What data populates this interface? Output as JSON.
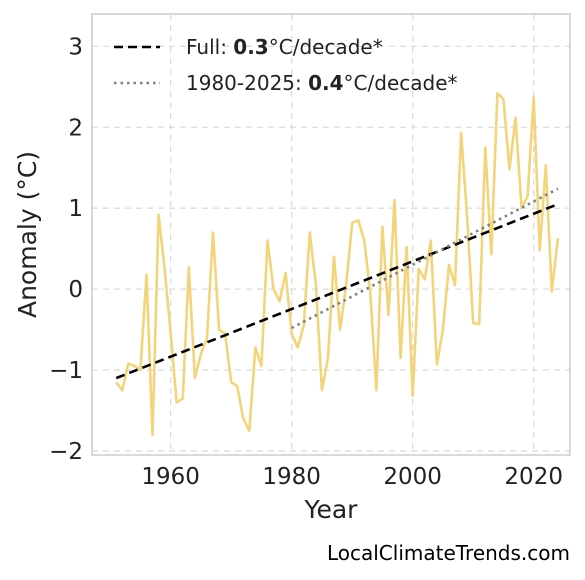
{
  "chart_data": {
    "type": "line",
    "xlabel": "Year",
    "ylabel": "Anomaly (°C)",
    "xlim": [
      1947,
      2026
    ],
    "ylim": [
      -2.05,
      3.4
    ],
    "x_ticks": [
      1960,
      1980,
      2000,
      2020
    ],
    "y_ticks": [
      -2,
      -1,
      0,
      1,
      2,
      3
    ],
    "x_tick_labels": [
      "1960",
      "1980",
      "2000",
      "2020"
    ],
    "y_tick_labels": [
      "−2",
      "−1",
      "0",
      "1",
      "2",
      "3"
    ],
    "grid": true,
    "legend_position": "top-left",
    "series": [
      {
        "kind": "annual-anomaly",
        "color": "#f2d57a",
        "x": [
          1951,
          1952,
          1953,
          1954,
          1955,
          1956,
          1957,
          1958,
          1959,
          1960,
          1961,
          1962,
          1963,
          1964,
          1965,
          1966,
          1967,
          1968,
          1969,
          1970,
          1971,
          1972,
          1973,
          1974,
          1975,
          1976,
          1977,
          1978,
          1979,
          1980,
          1981,
          1982,
          1983,
          1984,
          1985,
          1986,
          1987,
          1988,
          1989,
          1990,
          1991,
          1992,
          1993,
          1994,
          1995,
          1996,
          1997,
          1998,
          1999,
          2000,
          2001,
          2002,
          2003,
          2004,
          2005,
          2006,
          2007,
          2008,
          2009,
          2010,
          2011,
          2012,
          2013,
          2014,
          2015,
          2016,
          2017,
          2018,
          2019,
          2020,
          2021,
          2022,
          2023,
          2024
        ],
        "y": [
          -1.15,
          -1.25,
          -0.92,
          -0.95,
          -1.0,
          0.18,
          -1.8,
          0.92,
          0.25,
          -0.55,
          -1.4,
          -1.35,
          0.27,
          -1.1,
          -0.8,
          -0.6,
          0.7,
          -0.5,
          -0.55,
          -1.15,
          -1.2,
          -1.6,
          -1.75,
          -0.72,
          -0.95,
          0.6,
          0.0,
          -0.15,
          0.2,
          -0.55,
          -0.72,
          -0.45,
          0.7,
          0.05,
          -1.25,
          -0.85,
          0.4,
          -0.5,
          0.05,
          0.82,
          0.85,
          0.6,
          -0.05,
          -1.25,
          0.77,
          -0.32,
          1.1,
          -0.85,
          0.52,
          -1.32,
          0.25,
          0.12,
          0.6,
          -0.93,
          -0.5,
          0.3,
          0.05,
          1.93,
          0.9,
          -0.42,
          -0.43,
          1.75,
          0.43,
          2.42,
          2.35,
          1.48,
          2.12,
          1.0,
          1.15,
          2.37,
          0.48,
          1.53,
          -0.03,
          0.63
        ]
      },
      {
        "name": "Full",
        "trend_value": "0.3",
        "unit": "°C/decade*",
        "style": "dashed",
        "color": "#000000",
        "x": [
          1951,
          2024
        ],
        "y": [
          -1.1,
          1.05
        ]
      },
      {
        "name": "1980-2025",
        "trend_value": "0.4",
        "unit": "°C/decade*",
        "style": "dotted",
        "color": "#808080",
        "x": [
          1980,
          2024
        ],
        "y": [
          -0.48,
          1.24
        ]
      }
    ],
    "legend": [
      {
        "label": "Full: ",
        "bold": "0.3",
        "suffix": "°C/decade*"
      },
      {
        "label": "1980-2025: ",
        "bold": "0.4",
        "suffix": "°C/decade*"
      }
    ]
  },
  "credit": "LocalClimateTrends.com"
}
